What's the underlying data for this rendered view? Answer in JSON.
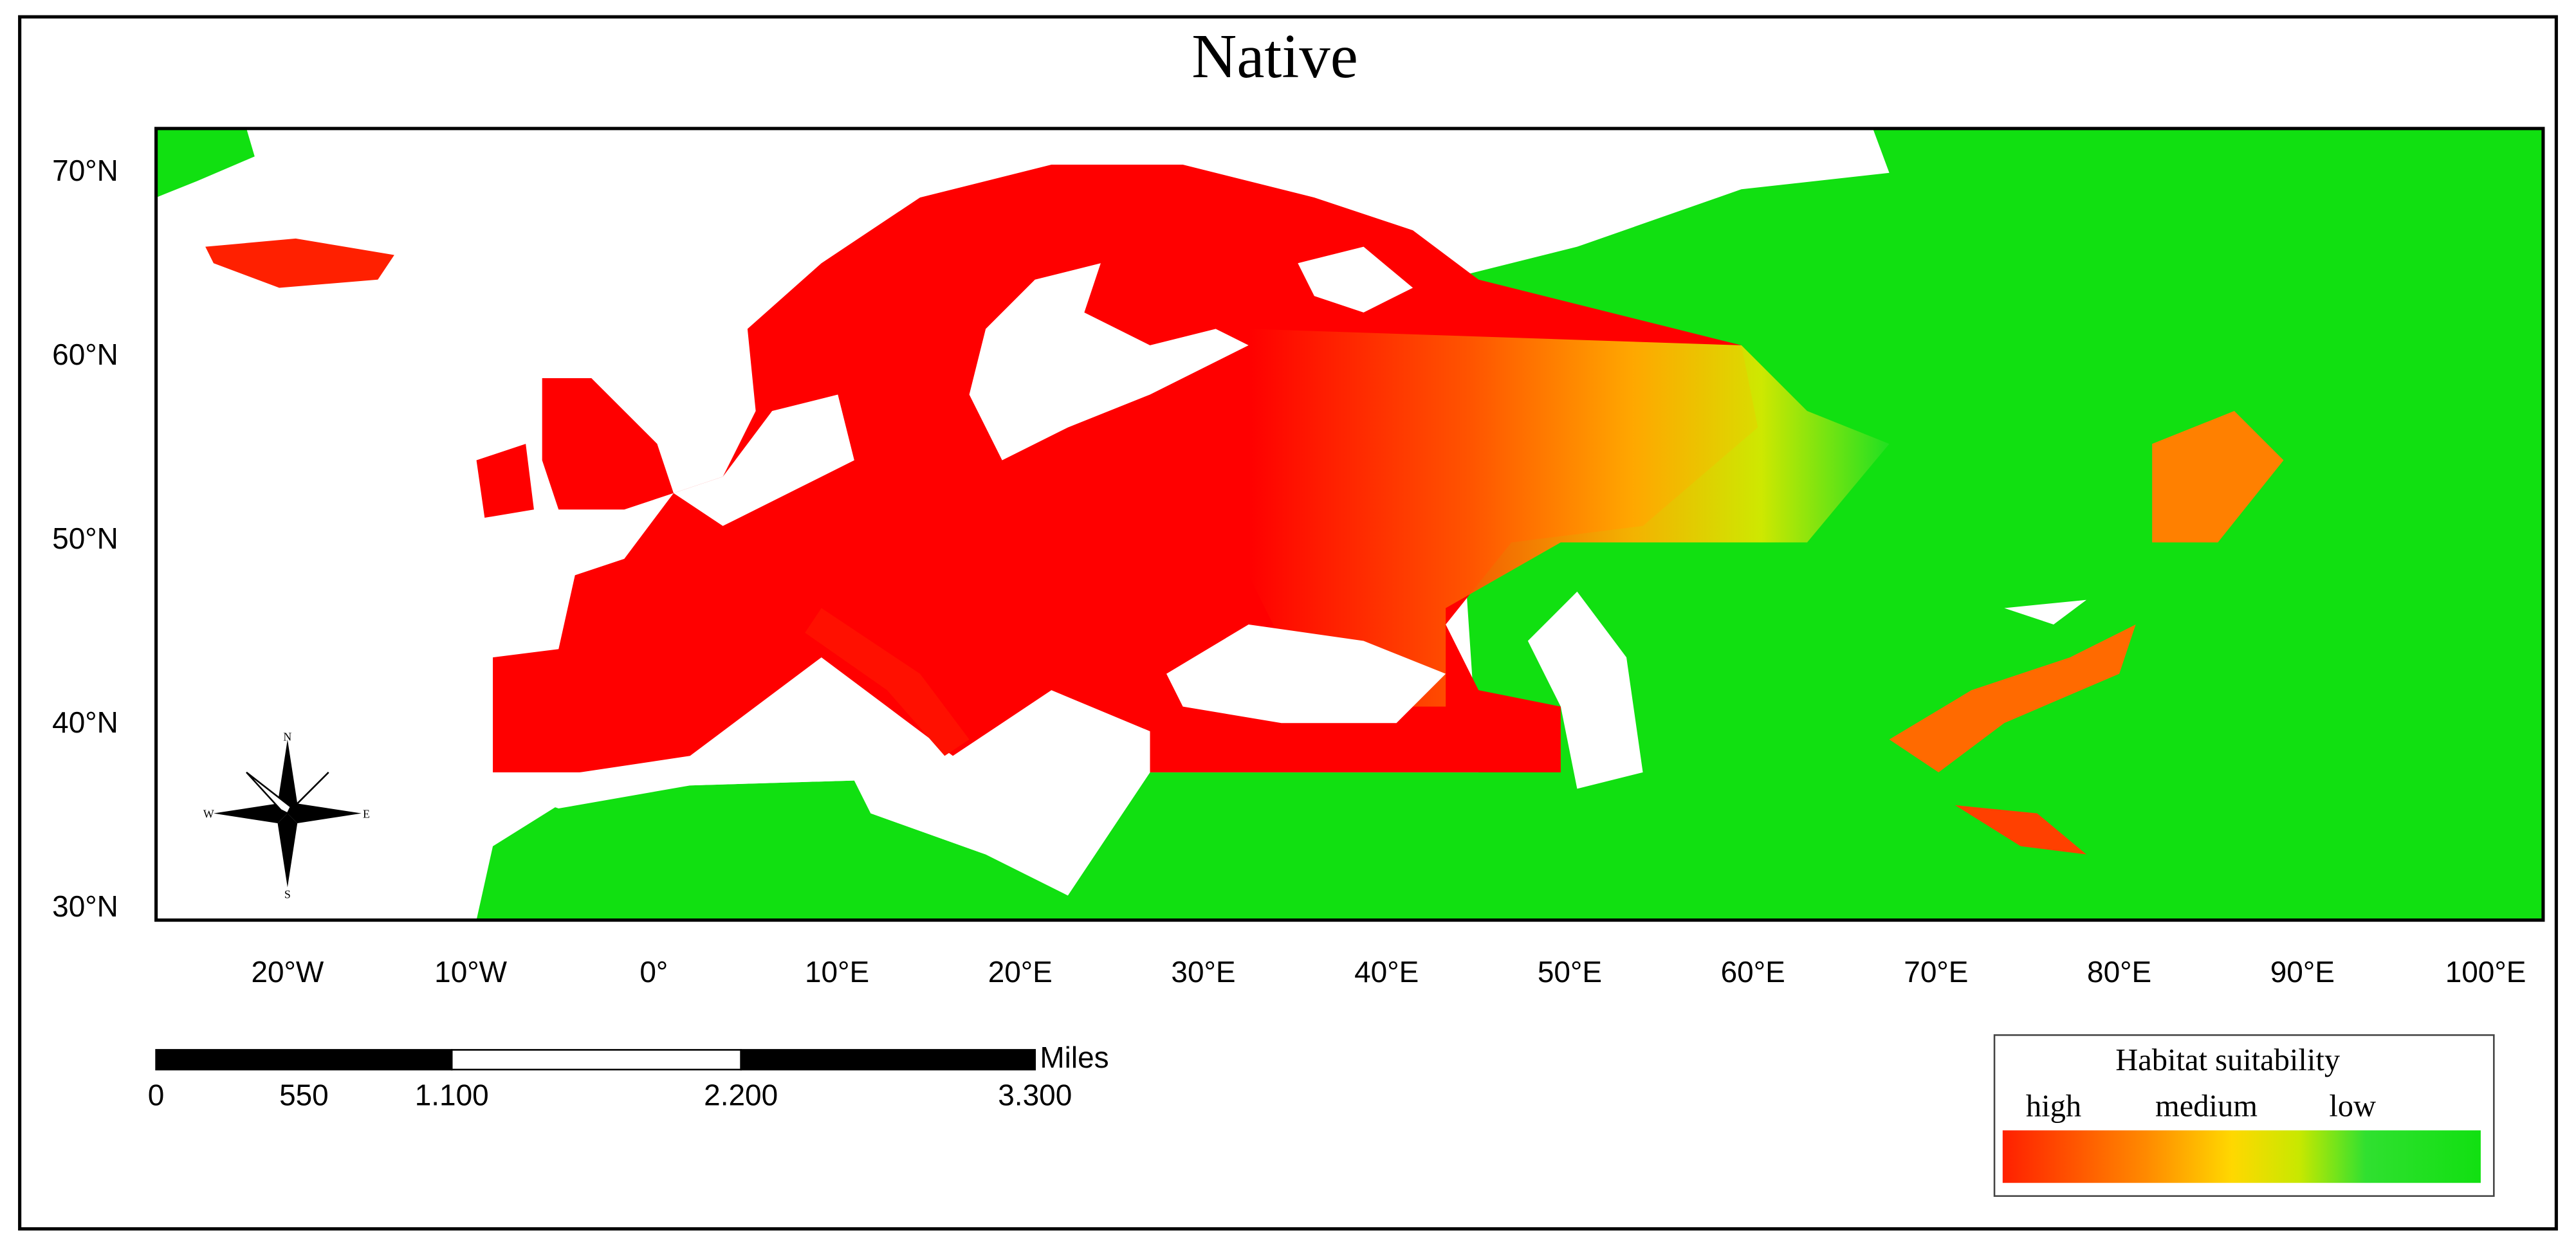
{
  "title": "Native",
  "map": {
    "lat_labels": [
      "70°N",
      "60°N",
      "50°N",
      "40°N",
      "30°N"
    ],
    "lon_labels": [
      "20°W",
      "10°W",
      "0°",
      "10°E",
      "20°E",
      "30°E",
      "40°E",
      "50°E",
      "60°E",
      "70°E",
      "80°E",
      "90°E",
      "100°E"
    ]
  },
  "scale_bar": {
    "labels": [
      "0",
      "550",
      "1.100",
      "2.200",
      "3.300"
    ],
    "unit": "Miles"
  },
  "legend": {
    "title": "Habitat suitability",
    "labels": [
      "high",
      "medium",
      "low"
    ]
  },
  "compass": {
    "labels": [
      "N",
      "S",
      "E",
      "W"
    ]
  }
}
